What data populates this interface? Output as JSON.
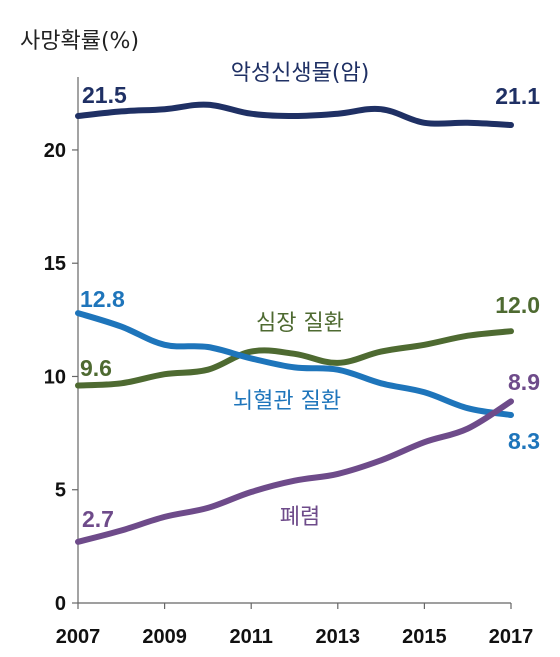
{
  "chart_data": {
    "type": "line",
    "ylabel": "사망확률(%)",
    "xlabel": "",
    "xlim": [
      2007,
      2017
    ],
    "ylim": [
      0,
      23
    ],
    "x_ticks": [
      "2007",
      "2009",
      "2011",
      "2013",
      "2015",
      "2017"
    ],
    "y_ticks": [
      "0",
      "5",
      "10",
      "15",
      "20"
    ],
    "x": [
      2007,
      2008,
      2009,
      2010,
      2011,
      2012,
      2013,
      2014,
      2015,
      2016,
      2017
    ],
    "series": [
      {
        "name": "악성신생물(암)",
        "color": "#1f3064",
        "values": [
          21.5,
          21.7,
          21.8,
          22.0,
          21.6,
          21.5,
          21.6,
          21.8,
          21.2,
          21.2,
          21.1
        ],
        "start_label": "21.5",
        "end_label": "21.1"
      },
      {
        "name": "심장 질환",
        "color": "#4e6a31",
        "values": [
          9.6,
          9.7,
          10.1,
          10.3,
          11.1,
          11.0,
          10.6,
          11.1,
          11.4,
          11.8,
          12.0
        ],
        "start_label": "9.6",
        "end_label": "12.0"
      },
      {
        "name": "뇌혈관 질환",
        "color": "#1e75bb",
        "values": [
          12.8,
          12.2,
          11.4,
          11.3,
          10.8,
          10.4,
          10.3,
          9.7,
          9.3,
          8.6,
          8.3
        ],
        "start_label": "12.8",
        "end_label": "8.3"
      },
      {
        "name": "폐렴",
        "color": "#6e4b8a",
        "values": [
          2.7,
          3.2,
          3.8,
          4.2,
          4.9,
          5.4,
          5.7,
          6.3,
          7.1,
          7.7,
          8.9
        ],
        "start_label": "2.7",
        "end_label": "8.9"
      }
    ]
  }
}
